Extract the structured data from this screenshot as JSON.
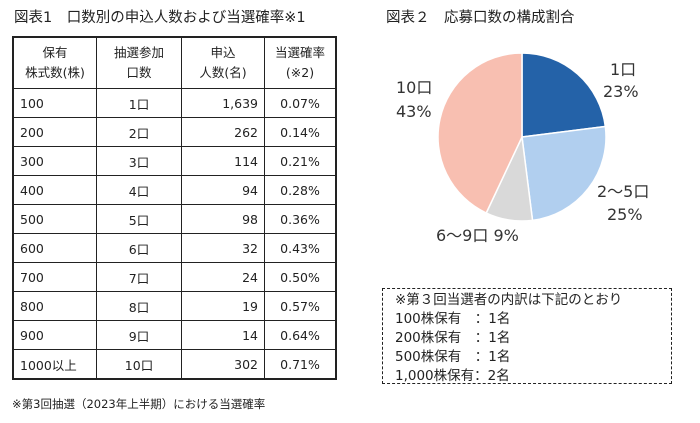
{
  "figure1": {
    "title": "図表1　口数別の申込人数および当選確率※1",
    "headers": [
      [
        "保有",
        "株式数(株)"
      ],
      [
        "抽選参加",
        "口数"
      ],
      [
        "申込",
        "人数(名)"
      ],
      [
        "当選確率",
        "(※2)"
      ]
    ],
    "rows": [
      [
        "100",
        "1口",
        "1,639",
        "0.07%"
      ],
      [
        "200",
        "2口",
        "262",
        "0.14%"
      ],
      [
        "300",
        "3口",
        "114",
        "0.21%"
      ],
      [
        "400",
        "4口",
        "94",
        "0.28%"
      ],
      [
        "500",
        "5口",
        "98",
        "0.36%"
      ],
      [
        "600",
        "6口",
        "32",
        "0.43%"
      ],
      [
        "700",
        "7口",
        "24",
        "0.50%"
      ],
      [
        "800",
        "8口",
        "19",
        "0.57%"
      ],
      [
        "900",
        "9口",
        "14",
        "0.64%"
      ],
      [
        "1000以上",
        "10口",
        "302",
        "0.71%"
      ]
    ],
    "note": "※第3回抽選（2023年上半期）における当選確率"
  },
  "chart_data": {
    "type": "pie",
    "title": "図表２　応募口数の構成割合",
    "categories": [
      "1口",
      "2～5口",
      "6～9口",
      "10口"
    ],
    "values": [
      23,
      25,
      9,
      43
    ],
    "value_labels": [
      "23%",
      "25%",
      "9%",
      "43%"
    ],
    "colors": [
      "#2462a8",
      "#b1cfef",
      "#d9d9d9",
      "#f8bfb1"
    ],
    "start": "top, clockwise"
  },
  "box": {
    "lines": [
      "※第３回当選者の内訳は下記のとおり",
      "100株保有　：1名",
      "200株保有　：1名",
      "500株保有　：1名",
      "1,000株保有：2名"
    ]
  }
}
